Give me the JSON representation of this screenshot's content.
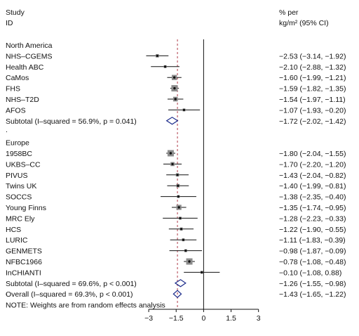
{
  "chart_data": {
    "type": "forest",
    "header": {
      "study_line1": "Study",
      "study_line2": "ID",
      "effect_line1": "% per",
      "effect_line2": "kg/m² (95% CI)"
    },
    "groups": [
      {
        "name": "North America",
        "studies": [
          {
            "id": "NHS–CGEMS",
            "est": -2.53,
            "lo": -3.14,
            "hi": -1.92,
            "ci": "−2.53 (−3.14, −1.92)"
          },
          {
            "id": "Health ABC",
            "est": -2.1,
            "lo": -2.88,
            "hi": -1.32,
            "ci": "−2.10 (−2.88, −1.32)"
          },
          {
            "id": "CaMos",
            "est": -1.6,
            "lo": -1.99,
            "hi": -1.21,
            "ci": "−1.60 (−1.99, −1.21)"
          },
          {
            "id": "FHS",
            "est": -1.59,
            "lo": -1.82,
            "hi": -1.35,
            "ci": "−1.59 (−1.82, −1.35)"
          },
          {
            "id": "NHS–T2D",
            "est": -1.54,
            "lo": -1.97,
            "hi": -1.11,
            "ci": "−1.54 (−1.97, −1.11)"
          },
          {
            "id": "AFOS",
            "est": -1.07,
            "lo": -1.93,
            "hi": -0.2,
            "ci": "−1.07 (−1.93, −0.20)"
          }
        ],
        "subtotal": {
          "label": "Subtotal  (I–squared = 56.9%, p = 0.041)",
          "est": -1.72,
          "lo": -2.02,
          "hi": -1.42,
          "ci": "−1.72 (−2.02, −1.42)"
        }
      },
      {
        "name": "Europe",
        "studies": [
          {
            "id": "1958BC",
            "est": -1.8,
            "lo": -2.04,
            "hi": -1.55,
            "ci": "−1.80 (−2.04, −1.55)"
          },
          {
            "id": "UKBS–CC",
            "est": -1.7,
            "lo": -2.2,
            "hi": -1.2,
            "ci": "−1.70 (−2.20, −1.20)"
          },
          {
            "id": "PIVUS",
            "est": -1.43,
            "lo": -2.04,
            "hi": -0.82,
            "ci": "−1.43 (−2.04, −0.82)"
          },
          {
            "id": "Twins UK",
            "est": -1.4,
            "lo": -1.99,
            "hi": -0.81,
            "ci": "−1.40 (−1.99, −0.81)"
          },
          {
            "id": "SOCCS",
            "est": -1.38,
            "lo": -2.35,
            "hi": -0.4,
            "ci": "−1.38 (−2.35, −0.40)"
          },
          {
            "id": "Young Finns",
            "est": -1.35,
            "lo": -1.74,
            "hi": -0.95,
            "ci": "−1.35 (−1.74, −0.95)"
          },
          {
            "id": "MRC Ely",
            "est": -1.28,
            "lo": -2.23,
            "hi": -0.33,
            "ci": "−1.28 (−2.23, −0.33)"
          },
          {
            "id": "HCS",
            "est": -1.22,
            "lo": -1.9,
            "hi": -0.55,
            "ci": "−1.22 (−1.90, −0.55)"
          },
          {
            "id": "LURIC",
            "est": -1.11,
            "lo": -1.83,
            "hi": -0.39,
            "ci": "−1.11 (−1.83, −0.39)"
          },
          {
            "id": "GENMETS",
            "est": -0.98,
            "lo": -1.87,
            "hi": -0.09,
            "ci": "−0.98 (−1.87, −0.09)"
          },
          {
            "id": "NFBC1966",
            "est": -0.78,
            "lo": -1.08,
            "hi": -0.48,
            "ci": "−0.78 (−1.08, −0.48)"
          },
          {
            "id": "InCHIANTI",
            "est": -0.1,
            "lo": -1.08,
            "hi": 0.88,
            "ci": "−0.10 (−1.08, 0.88)"
          }
        ],
        "subtotal": {
          "label": "Subtotal  (I–squared = 69.6%, p < 0.001)",
          "est": -1.26,
          "lo": -1.55,
          "hi": -0.98,
          "ci": "−1.26 (−1.55, −0.98)"
        }
      }
    ],
    "overall": {
      "label": "Overall  (I–squared = 69.3%, p < 0.001)",
      "est": -1.43,
      "lo": -1.65,
      "hi": -1.22,
      "ci": "−1.43 (−1.65, −1.22)"
    },
    "note": "NOTE: Weights are from random effects analysis",
    "xlim": [
      -4.0,
      4.2
    ],
    "x_ticks": [
      -3,
      -1.5,
      0,
      1.5,
      3
    ],
    "x_tick_labels": [
      "−3",
      "−1.5",
      "0",
      "1.5",
      "3"
    ],
    "null_line": 0,
    "reference_line": -1.43,
    "colors": {
      "ink": "#111111",
      "reference": "#b03a48",
      "diamond": "#1a2a8a",
      "box": "#8c8c8c"
    }
  }
}
